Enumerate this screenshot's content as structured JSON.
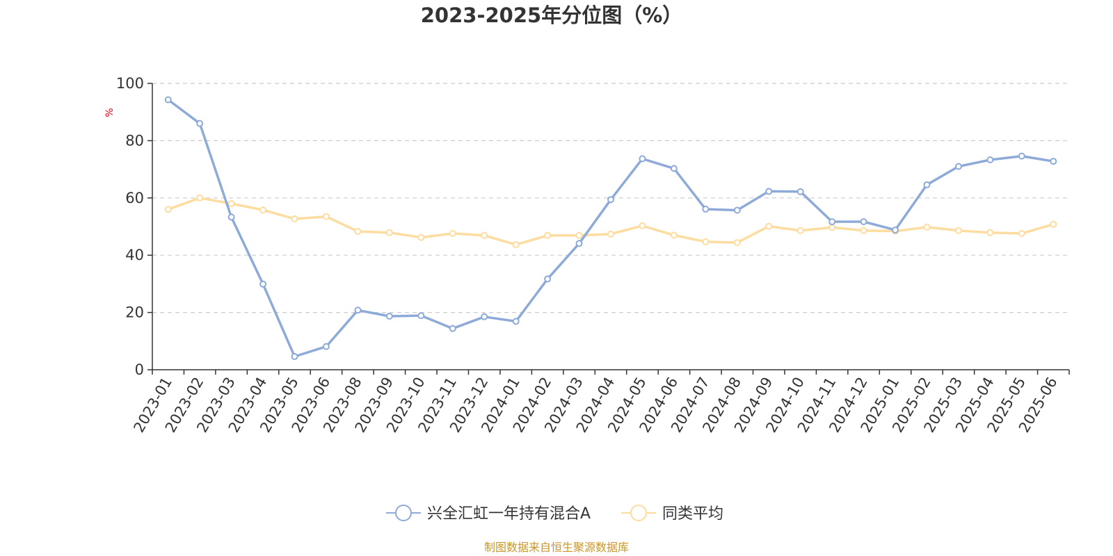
{
  "chart_data": {
    "type": "line",
    "title": "2023-2025年分位图（%）",
    "ylabel": "%",
    "ylim": [
      0,
      100
    ],
    "y_ticks": [
      0,
      20,
      40,
      60,
      80,
      100
    ],
    "grid": true,
    "legend_position": "bottom",
    "categories": [
      "2023-01",
      "2023-02",
      "2023-03",
      "2023-04",
      "2023-05",
      "2023-06",
      "2023-08",
      "2023-09",
      "2023-10",
      "2023-11",
      "2023-12",
      "2024-01",
      "2024-02",
      "2024-03",
      "2024-04",
      "2024-05",
      "2024-06",
      "2024-07",
      "2024-08",
      "2024-09",
      "2024-10",
      "2024-11",
      "2024-12",
      "2025-01",
      "2025-02",
      "2025-03",
      "2025-04",
      "2025-05",
      "2025-06"
    ],
    "series": [
      {
        "name": "兴全汇虹一年持有混合A",
        "color": "#8eaad8",
        "values": [
          94.3,
          86.0,
          53.3,
          29.9,
          4.6,
          8.1,
          20.8,
          18.7,
          18.9,
          14.4,
          18.5,
          16.9,
          31.7,
          44.1,
          59.4,
          73.7,
          70.3,
          56.1,
          55.7,
          62.3,
          62.2,
          51.7,
          51.7,
          48.8,
          64.6,
          71.0,
          73.3,
          74.6,
          72.8
        ]
      },
      {
        "name": "同类平均",
        "color": "#fddc9f",
        "values": [
          56.0,
          60.0,
          58.0,
          55.8,
          52.7,
          53.5,
          48.3,
          47.9,
          46.2,
          47.6,
          46.9,
          43.7,
          46.9,
          46.9,
          47.4,
          50.3,
          47.0,
          44.7,
          44.4,
          50.1,
          48.6,
          49.7,
          48.6,
          48.4,
          49.8,
          48.6,
          47.9,
          47.6,
          50.8
        ]
      }
    ]
  },
  "footer": {
    "source_text": "制图数据来自恒生聚源数据库"
  }
}
